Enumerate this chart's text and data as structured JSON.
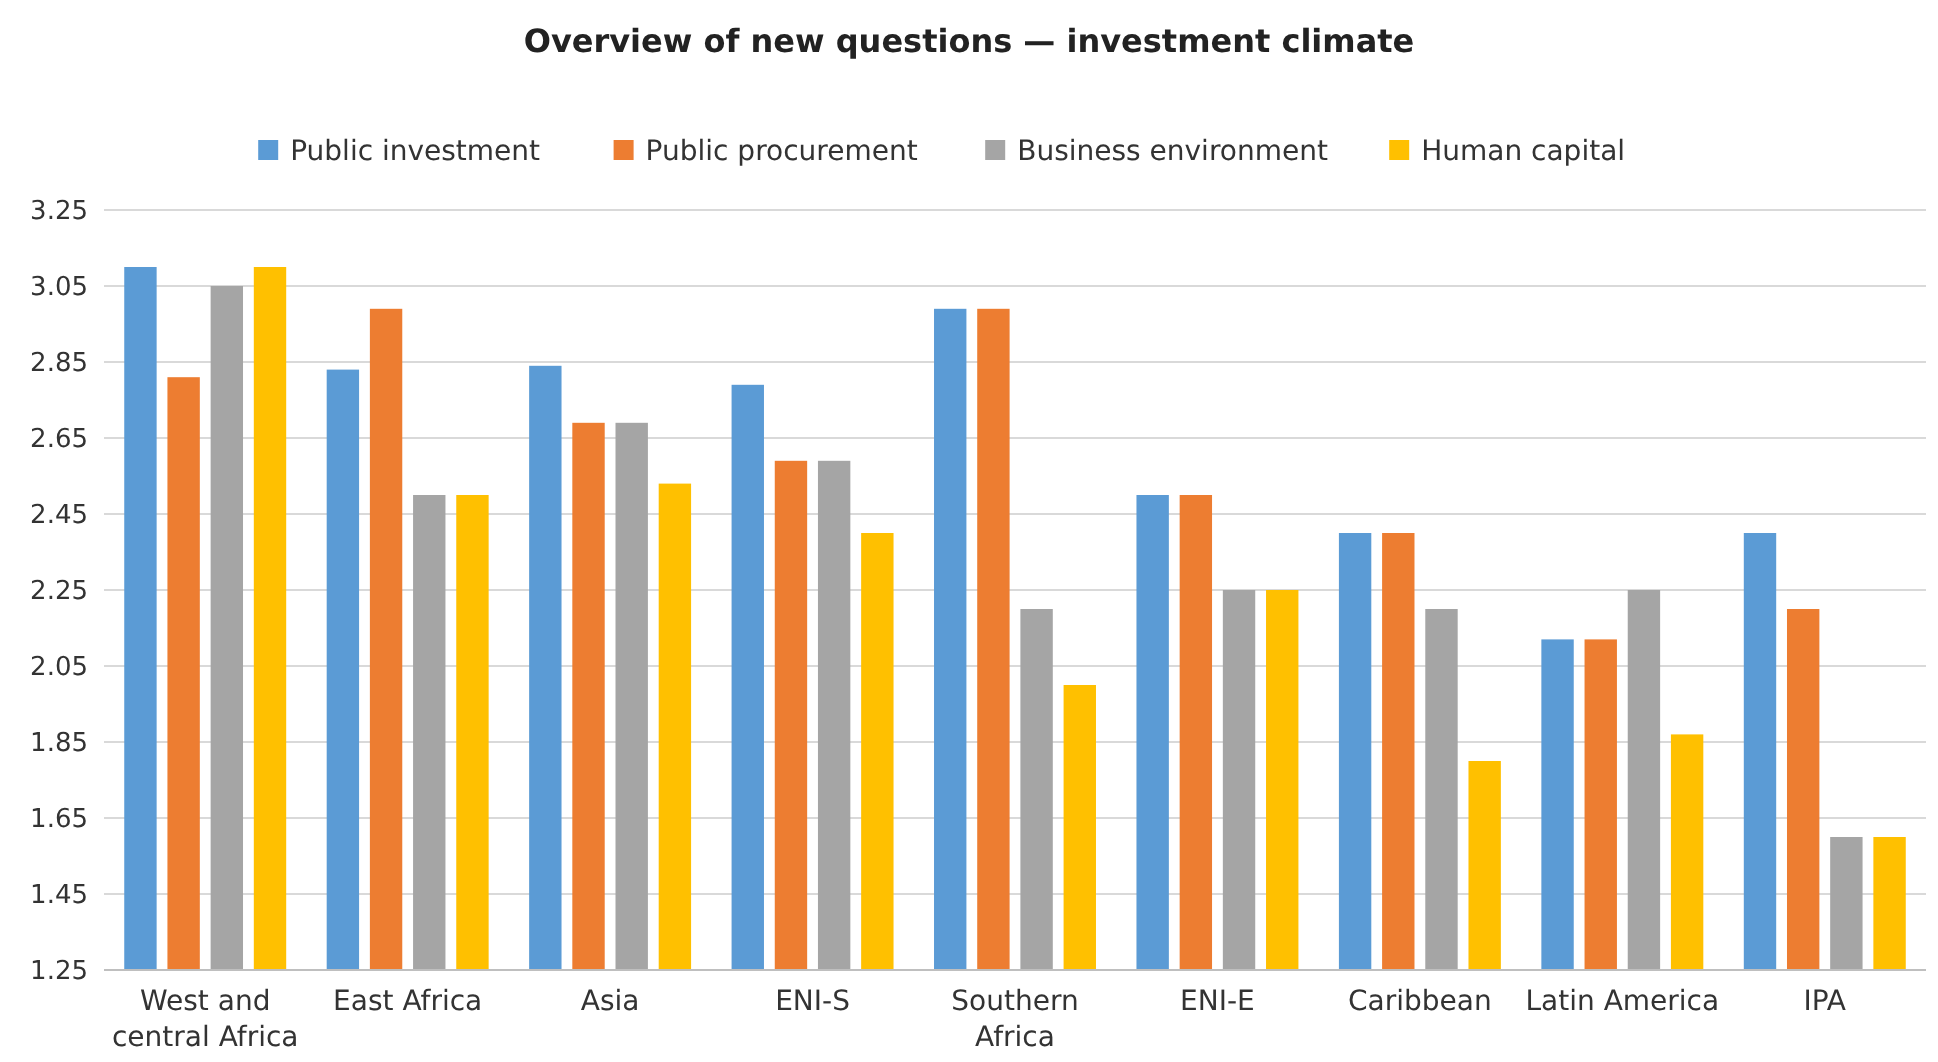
{
  "chart_data": {
    "type": "bar",
    "title": "Overview of new questions — investment climate",
    "categories": [
      "West and central Africa",
      "East Africa",
      "Asia",
      "ENI-S",
      "Southern Africa",
      "ENI-E",
      "Caribbean",
      "Latin America",
      "IPA"
    ],
    "series": [
      {
        "name": "Public investment",
        "color": "#5b9bd5",
        "values": [
          3.1,
          2.83,
          2.84,
          2.79,
          2.99,
          2.5,
          2.4,
          2.12,
          2.4
        ]
      },
      {
        "name": "Public procurement",
        "color": "#ed7d31",
        "values": [
          2.81,
          2.99,
          2.69,
          2.59,
          2.99,
          2.5,
          2.4,
          2.12,
          2.2
        ]
      },
      {
        "name": "Business environment",
        "color": "#a5a5a5",
        "values": [
          3.05,
          2.5,
          2.69,
          2.59,
          2.2,
          2.25,
          2.2,
          2.25,
          1.6
        ]
      },
      {
        "name": "Human capital",
        "color": "#ffc000",
        "values": [
          3.1,
          2.5,
          2.53,
          2.4,
          2.0,
          2.25,
          1.8,
          1.87,
          1.6
        ]
      }
    ],
    "ylim": [
      1.25,
      3.25
    ],
    "yticks": [
      1.25,
      1.45,
      1.65,
      1.85,
      2.05,
      2.25,
      2.45,
      2.65,
      2.85,
      3.05,
      3.25
    ],
    "grid": "y",
    "legend": "top"
  }
}
